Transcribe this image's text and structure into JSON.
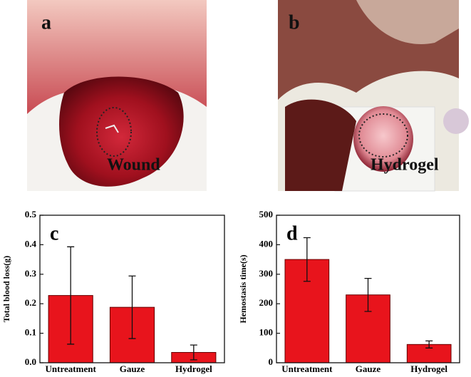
{
  "photos": [
    {
      "label": "a",
      "annotation": "Wound"
    },
    {
      "label": "b",
      "annotation": "Hydrogel"
    }
  ],
  "chart_data": [
    {
      "type": "bar",
      "panel_label": "c",
      "y_label": "Total blood loss(g)",
      "categories": [
        "Untreatment",
        "Gauze",
        "Hydrogel"
      ],
      "values": [
        0.228,
        0.188,
        0.035
      ],
      "errors": [
        0.165,
        0.106,
        0.025
      ],
      "color": "#e8141c",
      "ylim": [
        0,
        0.5
      ],
      "yticks": [
        {
          "value": 0,
          "label": "0.0"
        },
        0.1,
        0.2,
        0.3,
        0.4,
        0.5
      ]
    },
    {
      "type": "bar",
      "panel_label": "d",
      "y_label": "Hemostasis time(s)",
      "categories": [
        "Untreatment",
        "Gauze",
        "Hydrogel"
      ],
      "values": [
        350,
        230,
        62
      ],
      "errors": [
        74,
        56,
        12
      ],
      "color": "#e8141c",
      "ylim": [
        0,
        500
      ],
      "yticks": [
        0,
        100,
        200,
        300,
        400,
        500
      ]
    }
  ]
}
